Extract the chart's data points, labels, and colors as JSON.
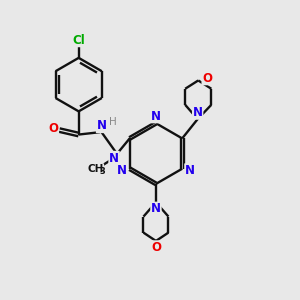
{
  "bg_color": "#e8e8e8",
  "N_color": "#2200ee",
  "O_color": "#ee0000",
  "Cl_color": "#00aa00",
  "H_color": "#888888",
  "C_color": "#111111",
  "bond_color": "#111111",
  "lw": 1.7,
  "figsize": [
    3.0,
    3.0
  ],
  "dpi": 100,
  "xlim": [
    0,
    10
  ],
  "ylim": [
    0,
    10
  ]
}
